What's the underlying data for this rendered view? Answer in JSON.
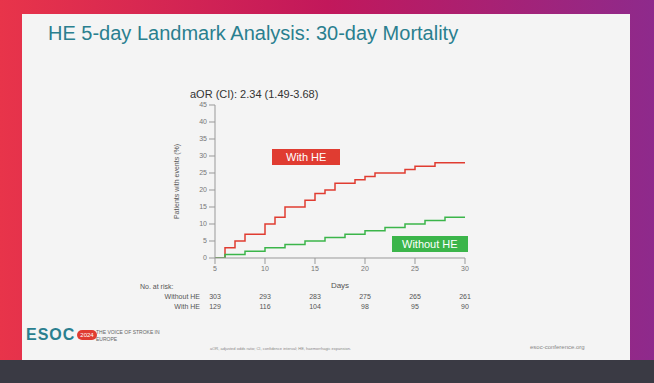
{
  "chart_data": {
    "type": "line",
    "title": "HE 5-day Landmark Analysis: 30-day Mortality",
    "subtitle": "aOR (CI): 2.34 (1.49-3.68)",
    "x_label": "Days",
    "y_label": "Patients with events (%)",
    "xlim": [
      5,
      30
    ],
    "xticks": [
      5,
      10,
      15,
      20,
      25,
      30
    ],
    "ylim": [
      0,
      45
    ],
    "yticks": [
      0,
      5,
      10,
      15,
      20,
      25,
      30,
      35,
      40,
      45
    ],
    "grid": false,
    "line_style": "step",
    "series": [
      {
        "name": "With HE",
        "color": "#e03c31",
        "x": [
          5,
          6,
          7,
          8,
          10,
          11,
          12,
          14,
          15,
          16,
          17,
          19,
          20,
          21,
          24,
          25,
          27,
          30
        ],
        "values": [
          0,
          3,
          5,
          7,
          10,
          12,
          15,
          17,
          19,
          20,
          22,
          23,
          24,
          25,
          26,
          27,
          28,
          28
        ]
      },
      {
        "name": "Without HE",
        "color": "#3bb54a",
        "x": [
          5,
          6,
          8,
          10,
          12,
          14,
          16,
          18,
          20,
          22,
          24,
          26,
          28,
          30
        ],
        "values": [
          0,
          1,
          2,
          3,
          4,
          5,
          6,
          7,
          8,
          9,
          10,
          11,
          12,
          12
        ]
      }
    ],
    "risk_table": {
      "title": "No. at risk:",
      "x": [
        5,
        10,
        15,
        20,
        25,
        30
      ],
      "rows": [
        {
          "name": "Without HE",
          "values": [
            303,
            293,
            283,
            275,
            265,
            261
          ]
        },
        {
          "name": "With HE",
          "values": [
            129,
            116,
            104,
            98,
            95,
            90
          ]
        }
      ]
    },
    "footer": {
      "logo": "ESOC",
      "logo_year": "2024",
      "tagline": "THE VOICE OF STROKE IN EUROPE",
      "note": "aOR, adjusted odds ratio; CI, confidence interval; HE, haemorrhagic expansion.",
      "url": "esoc-conference.org"
    }
  }
}
